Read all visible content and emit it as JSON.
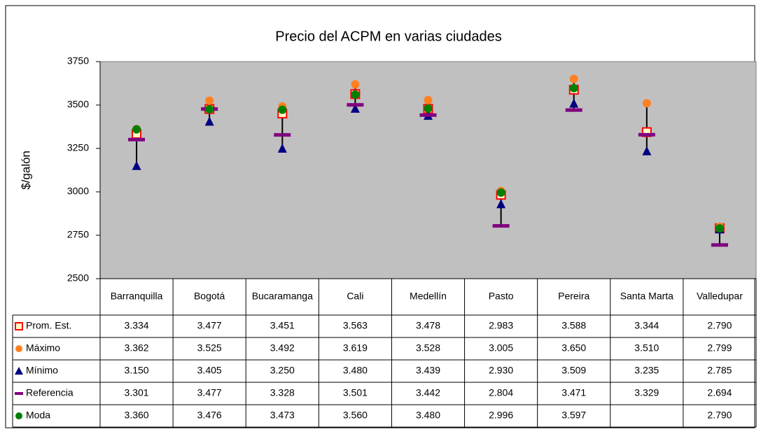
{
  "chart_data": {
    "type": "line",
    "show_lines": false,
    "high_low_lines": true,
    "title": "Precio del ACPM en varias ciudades",
    "y_label": "$/galón",
    "categories": [
      "Barranquilla",
      "Bogotá",
      "Bucaramanga",
      "Cali",
      "Medellín",
      "Pasto",
      "Pereira",
      "Santa Marta",
      "Valledupar"
    ],
    "ylim": [
      2500,
      3750
    ],
    "yticks": [
      2500,
      2750,
      3000,
      3250,
      3500,
      3750
    ],
    "background": "#c0c0c0",
    "series": [
      {
        "name": "Prom. Est.",
        "marker": "square",
        "color": "#ff0000",
        "fill": "#ffffcc",
        "values": [
          3334,
          3477,
          3451,
          3563,
          3478,
          2983,
          3588,
          3344,
          2790
        ],
        "value_labels": [
          "3.334",
          "3.477",
          "3.451",
          "3.563",
          "3.478",
          "2.983",
          "3.588",
          "3.344",
          "2.790"
        ]
      },
      {
        "name": "Máximo",
        "marker": "circle",
        "color": "#ff8020",
        "fill": "#ff8020",
        "values": [
          3362,
          3525,
          3492,
          3619,
          3528,
          3005,
          3650,
          3510,
          2799
        ],
        "value_labels": [
          "3.362",
          "3.525",
          "3.492",
          "3.619",
          "3.528",
          "3.005",
          "3.650",
          "3.510",
          "2.799"
        ]
      },
      {
        "name": "Mínimo",
        "marker": "triangle",
        "color": "#000080",
        "fill": "#000080",
        "values": [
          3150,
          3405,
          3250,
          3480,
          3439,
          2930,
          3509,
          3235,
          2785
        ],
        "value_labels": [
          "3.150",
          "3.405",
          "3.250",
          "3.480",
          "3.439",
          "2.930",
          "3.509",
          "3.235",
          "2.785"
        ]
      },
      {
        "name": "Referencia",
        "marker": "dash",
        "color": "#800080",
        "fill": "#800080",
        "values": [
          3301,
          3477,
          3328,
          3501,
          3442,
          2804,
          3471,
          3329,
          2694
        ],
        "value_labels": [
          "3.301",
          "3.477",
          "3.328",
          "3.501",
          "3.442",
          "2.804",
          "3.471",
          "3.329",
          "2.694"
        ]
      },
      {
        "name": "Moda",
        "marker": "circle",
        "color": "#008000",
        "fill": "#008000",
        "values": [
          3360,
          3476,
          3473,
          3560,
          3480,
          2996,
          3597,
          null,
          2790
        ],
        "value_labels": [
          "3.360",
          "3.476",
          "3.473",
          "3.560",
          "3.480",
          "2.996",
          "3.597",
          null,
          "2.790"
        ]
      }
    ]
  }
}
